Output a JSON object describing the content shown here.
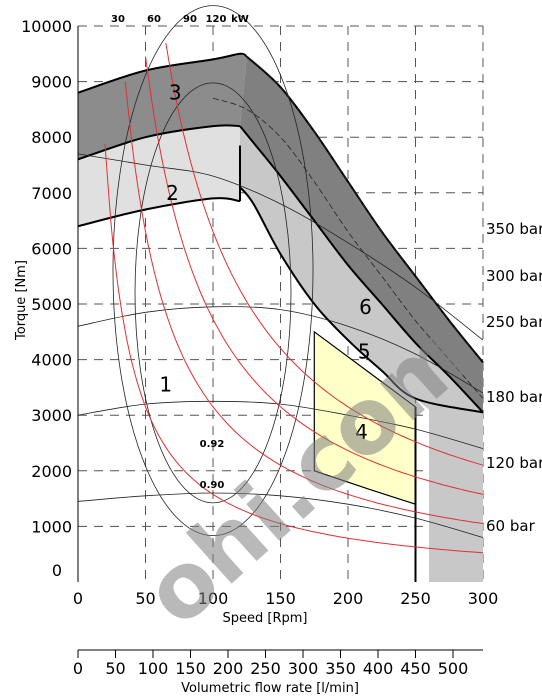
{
  "chart_data": {
    "type": "line",
    "xlabel": "Speed [Rpm]",
    "ylabel": "Torque [Nm]",
    "xlim": [
      0,
      300
    ],
    "ylim": [
      0,
      10000
    ],
    "x_ticks": [
      "0",
      "50",
      "100",
      "150",
      "200",
      "250",
      "300"
    ],
    "y_ticks": [
      "0",
      "1000",
      "2000",
      "3000",
      "4000",
      "5000",
      "6000",
      "7000",
      "8000",
      "9000",
      "10000"
    ],
    "secondary_axis": {
      "label": "Volumetric flow rate [l/min]",
      "ticks": [
        "0",
        "50",
        "100",
        "150",
        "200",
        "250",
        "300",
        "350",
        "400",
        "450",
        "500"
      ]
    },
    "power_labels": [
      "30",
      "60",
      "90",
      "120",
      "kW"
    ],
    "power_curves_kw": [
      30,
      60,
      90,
      120
    ],
    "pressure_labels": [
      "350 bar",
      "300 bar",
      "250 bar",
      "180 bar",
      "120 bar",
      "60 bar"
    ],
    "pressure_curves": [
      {
        "label": "350 bar",
        "points": [
          [
            125,
            9450
          ],
          [
            150,
            8900
          ],
          [
            175,
            8100
          ],
          [
            200,
            7200
          ],
          [
            225,
            6300
          ],
          [
            250,
            5500
          ],
          [
            275,
            4700
          ],
          [
            300,
            3950
          ]
        ]
      },
      {
        "label": "300 bar",
        "points": [
          [
            100,
            8700
          ],
          [
            125,
            8500
          ],
          [
            150,
            8000
          ],
          [
            175,
            7200
          ],
          [
            200,
            6300
          ],
          [
            225,
            5500
          ],
          [
            250,
            4700
          ],
          [
            275,
            4000
          ],
          [
            300,
            3300
          ]
        ]
      },
      {
        "label": "250 bar",
        "points": [
          [
            0,
            7700
          ],
          [
            50,
            7500
          ],
          [
            100,
            7300
          ],
          [
            150,
            6800
          ],
          [
            200,
            6100
          ],
          [
            250,
            5300
          ],
          [
            300,
            4350
          ]
        ]
      },
      {
        "label": "180 bar",
        "points": [
          [
            0,
            4600
          ],
          [
            50,
            4850
          ],
          [
            100,
            4950
          ],
          [
            150,
            4900
          ],
          [
            200,
            4600
          ],
          [
            250,
            4100
          ],
          [
            300,
            3400
          ]
        ]
      },
      {
        "label": "120 bar",
        "points": [
          [
            0,
            3000
          ],
          [
            50,
            3200
          ],
          [
            100,
            3250
          ],
          [
            150,
            3200
          ],
          [
            200,
            3000
          ],
          [
            250,
            2750
          ],
          [
            300,
            2400
          ]
        ]
      },
      {
        "label": "60 bar",
        "points": [
          [
            0,
            1450
          ],
          [
            50,
            1550
          ],
          [
            100,
            1600
          ],
          [
            150,
            1550
          ],
          [
            200,
            1400
          ],
          [
            250,
            1150
          ],
          [
            300,
            800
          ]
        ]
      }
    ],
    "efficiency_labels": [
      "0.92",
      "0.90"
    ],
    "regions": [
      {
        "label": "1",
        "at": [
          65,
          3550
        ]
      },
      {
        "label": "2",
        "at": [
          70,
          7000
        ]
      },
      {
        "label": "3",
        "at": [
          72,
          8800
        ]
      },
      {
        "label": "4",
        "at": [
          210,
          2700
        ]
      },
      {
        "label": "5",
        "at": [
          212,
          4150
        ]
      },
      {
        "label": "6",
        "at": [
          213,
          4950
        ]
      }
    ],
    "zones": [
      {
        "label": "3",
        "fill": "#8c8c8c",
        "upper": [
          [
            0,
            8800
          ],
          [
            50,
            9200
          ],
          [
            100,
            9400
          ],
          [
            120,
            9500
          ],
          [
            125,
            9450
          ]
        ],
        "lower": [
          [
            0,
            7600
          ],
          [
            50,
            8000
          ],
          [
            100,
            8200
          ],
          [
            120,
            8200
          ]
        ]
      },
      {
        "label": "2",
        "fill": "#e0e0e0",
        "upper": [
          [
            0,
            7600
          ],
          [
            50,
            8000
          ],
          [
            100,
            8200
          ],
          [
            120,
            8200
          ]
        ],
        "lower": [
          [
            0,
            6400
          ],
          [
            50,
            6700
          ],
          [
            100,
            6900
          ],
          [
            120,
            6850
          ]
        ]
      }
    ],
    "colors": {
      "power": "#e03030",
      "grid": "#000000",
      "yellow": "#ffffc8",
      "dark": "#808080",
      "mid": "#c8c8c8",
      "light": "#e0e0e0"
    }
  },
  "watermark": "ohi.com"
}
